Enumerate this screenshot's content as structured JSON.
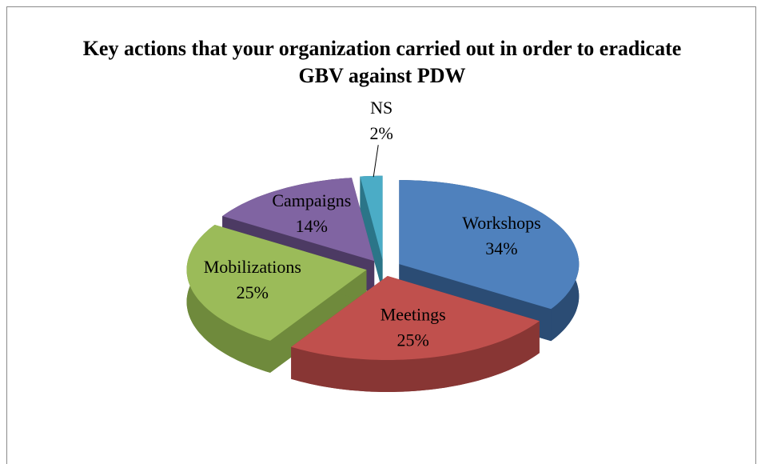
{
  "chart_data": {
    "type": "pie",
    "title": "Key actions that your organization carried out in order to eradicate GBV against PDW",
    "categories": [
      "Workshops",
      "Meetings",
      "Mobilizations",
      "Campaigns",
      "NS"
    ],
    "values": [
      34,
      25,
      25,
      14,
      2
    ],
    "value_labels": [
      "34%",
      "25%",
      "25%",
      "14%",
      "2%"
    ],
    "colors": [
      "#4f81bd",
      "#c0504d",
      "#9bbb59",
      "#8064a2",
      "#4bacc6"
    ],
    "side_colors": [
      "#2b4c74",
      "#883634",
      "#6f8a3c",
      "#4c3a63",
      "#2b7588"
    ],
    "three_d": true,
    "exploded": true
  }
}
